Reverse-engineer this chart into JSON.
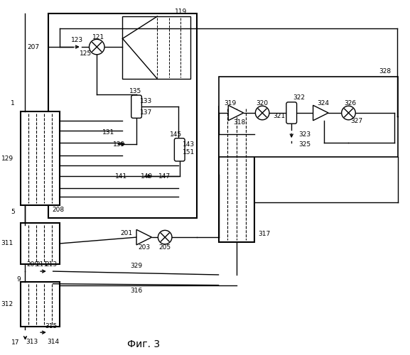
{
  "bg_color": "#ffffff",
  "lc": "#000000",
  "lw": 1.0,
  "lw_thick": 1.5,
  "fig_width": 5.77,
  "fig_height": 5.0,
  "title": "Фиг. 3"
}
